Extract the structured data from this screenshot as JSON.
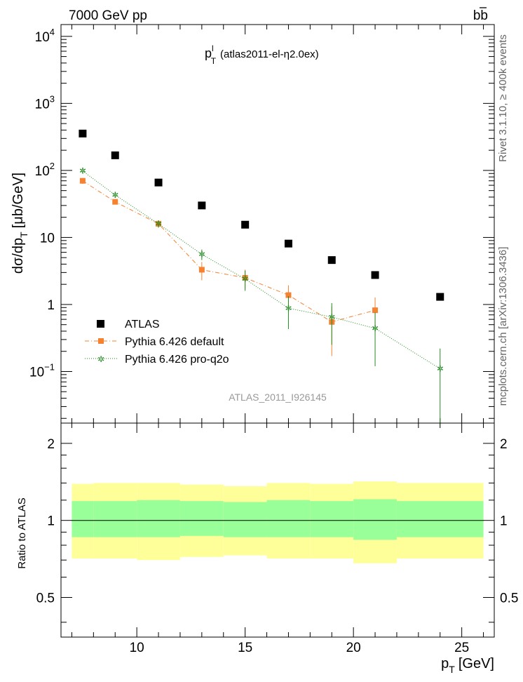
{
  "header": {
    "left": "7000 GeV pp",
    "right": "bb",
    "right_bar": "b"
  },
  "side": {
    "top": "Rivet 3.1.10, ≥ 400k events",
    "bottom": "mcplots.cern.ch [arXiv:1306.3436]"
  },
  "chart_data": [
    {
      "type": "scatter",
      "title": "p",
      "title_sup": "l",
      "title_sub": "T",
      "title_rest": "(atlas2011-el-η2.0ex)",
      "ylabel": "dσ/dp",
      "ylabel_sub": "T",
      "ylabel_unit": "[μb/GeV]",
      "yscale": "log",
      "ylim": [
        0.017,
        15000
      ],
      "xlim": [
        6.5,
        26.5
      ],
      "ytick_labels": [
        {
          "value": 10000,
          "base": "10",
          "exp": "4"
        },
        {
          "value": 1000,
          "base": "10",
          "exp": "3"
        },
        {
          "value": 100,
          "base": "10",
          "exp": "2"
        },
        {
          "value": 10,
          "base": "10",
          "exp": ""
        },
        {
          "value": 1,
          "base": "1",
          "exp": ""
        },
        {
          "value": 0.1,
          "base": "10",
          "exp": "−1"
        }
      ],
      "watermark": "ATLAS_2011_I926145",
      "series": [
        {
          "name": "ATLAS",
          "color": "#000000",
          "style": "square",
          "x": [
            7.5,
            9,
            11,
            13,
            15,
            17,
            19,
            21,
            24
          ],
          "y": [
            355,
            168,
            66,
            30,
            15.5,
            8.1,
            4.6,
            2.75,
            1.3
          ],
          "err": [
            0,
            0,
            0,
            0,
            0,
            0,
            0,
            0,
            0
          ]
        },
        {
          "name": "Pythia 6.426 default",
          "color": "#f58231",
          "style": "square-dashdot",
          "x": [
            7.5,
            9,
            11,
            13,
            15,
            17,
            19,
            21
          ],
          "y": [
            70,
            34,
            16,
            3.3,
            2.5,
            1.38,
            0.55,
            0.82
          ],
          "err": [
            7,
            3,
            2,
            1.0,
            0.8,
            0.55,
            0.38,
            0.45
          ]
        },
        {
          "name": "Pythia 6.426 pro-q2o",
          "color": "#228b22",
          "style": "star-dotted",
          "x": [
            7.5,
            9,
            11,
            13,
            15,
            17,
            19,
            21,
            24
          ],
          "y": [
            98,
            43,
            16,
            5.6,
            2.4,
            0.88,
            0.65,
            0.44,
            0.11
          ],
          "err": [
            6,
            4,
            2,
            1.0,
            0.8,
            0.45,
            0.4,
            0.32,
            0.11
          ]
        }
      ]
    },
    {
      "type": "band",
      "ylabel": "Ratio to ATLAS",
      "ylim": [
        0.35,
        2.4
      ],
      "xlim": [
        6.5,
        26.5
      ],
      "ytick_labels": [
        {
          "value": 0.5,
          "label": "0.5"
        },
        {
          "value": 1,
          "label": "1"
        },
        {
          "value": 2,
          "label": "2"
        }
      ],
      "xtick_labels": [
        {
          "value": 10,
          "label": "10"
        },
        {
          "value": 15,
          "label": "15"
        },
        {
          "value": 20,
          "label": "20"
        },
        {
          "value": 25,
          "label": "25"
        }
      ],
      "xlabel": "p",
      "xlabel_sub": "T",
      "xlabel_unit": "[GeV]",
      "bins": [
        [
          7,
          8
        ],
        [
          8,
          10
        ],
        [
          10,
          12
        ],
        [
          12,
          14
        ],
        [
          14,
          16
        ],
        [
          16,
          18
        ],
        [
          18,
          20
        ],
        [
          20,
          22
        ],
        [
          22,
          26
        ]
      ],
      "inner": [
        [
          0.86,
          1.19
        ],
        [
          0.86,
          1.19
        ],
        [
          0.86,
          1.2
        ],
        [
          0.87,
          1.19
        ],
        [
          0.86,
          1.18
        ],
        [
          0.86,
          1.2
        ],
        [
          0.86,
          1.19
        ],
        [
          0.84,
          1.21
        ],
        [
          0.86,
          1.19
        ]
      ],
      "outer": [
        [
          0.71,
          1.39
        ],
        [
          0.71,
          1.4
        ],
        [
          0.7,
          1.4
        ],
        [
          0.72,
          1.38
        ],
        [
          0.73,
          1.36
        ],
        [
          0.71,
          1.4
        ],
        [
          0.71,
          1.39
        ],
        [
          0.68,
          1.42
        ],
        [
          0.71,
          1.4
        ]
      ],
      "inner_color": "#99ff99",
      "outer_color": "#ffff99",
      "line_value": 1
    }
  ]
}
